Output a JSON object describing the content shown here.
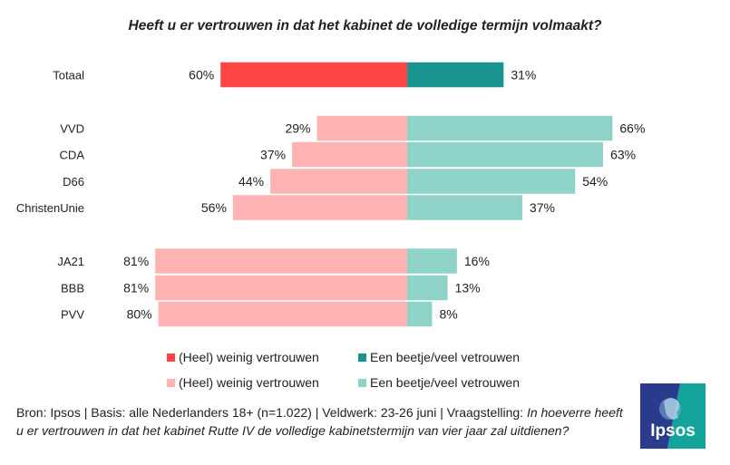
{
  "title": "Heeft u er vertrouwen in dat het kabinet de volledige termijn volmaakt?",
  "chart_data": {
    "type": "bar",
    "orientation": "diverging-horizontal",
    "categories": [
      "Totaal",
      "VVD",
      "CDA",
      "D66",
      "ChristenUnie",
      "JA21",
      "BBB",
      "PVV"
    ],
    "groups": [
      [
        "Totaal"
      ],
      [
        "VVD",
        "CDA",
        "D66",
        "ChristenUnie"
      ],
      [
        "JA21",
        "BBB",
        "PVV"
      ]
    ],
    "series": [
      {
        "name": "(Heel) weinig vertrouwen",
        "values": [
          60,
          29,
          37,
          44,
          56,
          81,
          81,
          80
        ]
      },
      {
        "name": "Een beetje/veel vetrouwen",
        "values": [
          31,
          66,
          63,
          54,
          37,
          16,
          13,
          8
        ]
      }
    ],
    "unit": "%",
    "colors": {
      "total_negative": "#ff4444",
      "total_positive": "#1a9490",
      "party_negative": "#ffb3b3",
      "party_positive": "#8fd3c8"
    },
    "grid": false
  },
  "legend": {
    "rows": [
      {
        "negative": "(Heel) weinig vertrouwen",
        "positive": "Een beetje/veel vetrouwen"
      },
      {
        "negative": "(Heel) weinig vertrouwen",
        "positive": "Een beetje/veel vetrouwen"
      }
    ]
  },
  "footer": {
    "source": "Bron: Ipsos | Basis: alle Nederlanders 18+ (n=1.022) | Veldwerk: 23-26 juni | Vraagstelling: ",
    "question": "In hoeverre heeft u er vertrouwen in dat het kabinet Rutte IV de volledige kabinetstermijn van vier jaar zal uitdienen?"
  },
  "logo": {
    "text": "Ipsos",
    "colors": {
      "left": "#2a3a8c",
      "right": "#14a39a"
    }
  }
}
